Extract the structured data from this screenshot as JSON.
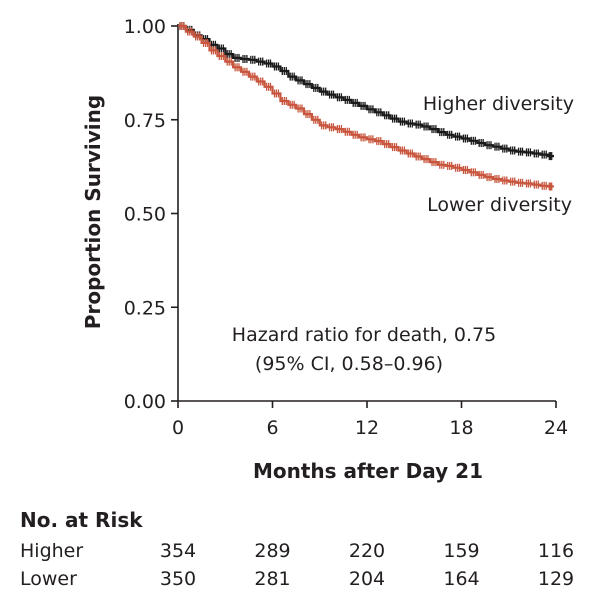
{
  "chart_data": {
    "type": "line",
    "subtype": "kaplan-meier",
    "title": "",
    "xlabel": "Months after Day 21",
    "ylabel": "Proportion Surviving",
    "xlim": [
      0,
      24
    ],
    "ylim": [
      0,
      1
    ],
    "x_ticks": [
      0,
      6,
      12,
      18,
      24
    ],
    "x_tick_labels": [
      "0",
      "6",
      "12",
      "18",
      "24"
    ],
    "y_ticks": [
      0,
      0.25,
      0.5,
      0.75,
      1.0
    ],
    "y_tick_labels": [
      "0.00",
      "0.25",
      "0.50",
      "0.75",
      "1.00"
    ],
    "grid": false,
    "legend": "none",
    "series": [
      {
        "name": "Higher diversity",
        "color": "#1a1a1a",
        "x": [
          0,
          0.5,
          1,
          1.5,
          2,
          2.5,
          3,
          3.5,
          4,
          4.5,
          5,
          5.5,
          6,
          6.5,
          7,
          7.5,
          8,
          8.5,
          9,
          9.5,
          10,
          10.5,
          11,
          11.5,
          12,
          12.5,
          13,
          13.5,
          14,
          14.5,
          15,
          15.5,
          16,
          16.5,
          17,
          17.5,
          18,
          18.5,
          19,
          19.5,
          20,
          20.5,
          21,
          21.5,
          22,
          22.5,
          23,
          23.5,
          23.8
        ],
        "y": [
          1.0,
          0.99,
          0.975,
          0.965,
          0.95,
          0.94,
          0.925,
          0.915,
          0.912,
          0.91,
          0.905,
          0.9,
          0.892,
          0.88,
          0.865,
          0.855,
          0.845,
          0.835,
          0.825,
          0.817,
          0.81,
          0.803,
          0.795,
          0.787,
          0.778,
          0.77,
          0.762,
          0.753,
          0.745,
          0.74,
          0.737,
          0.732,
          0.725,
          0.717,
          0.71,
          0.705,
          0.7,
          0.694,
          0.688,
          0.682,
          0.678,
          0.673,
          0.668,
          0.665,
          0.663,
          0.66,
          0.657,
          0.653,
          0.65
        ]
      },
      {
        "name": "Lower diversity",
        "color": "#c8553d",
        "x": [
          0,
          0.5,
          1,
          1.5,
          2,
          2.5,
          3,
          3.5,
          4,
          4.5,
          5,
          5.5,
          6,
          6.5,
          7,
          7.5,
          8,
          8.5,
          9,
          9.5,
          10,
          10.5,
          11,
          11.5,
          12,
          12.5,
          13,
          13.5,
          14,
          14.5,
          15,
          15.5,
          16,
          16.5,
          17,
          17.5,
          18,
          18.5,
          19,
          19.5,
          20,
          20.5,
          21,
          21.5,
          22,
          22.5,
          23,
          23.5,
          23.8
        ],
        "y": [
          1.0,
          0.985,
          0.972,
          0.955,
          0.935,
          0.92,
          0.905,
          0.89,
          0.878,
          0.865,
          0.852,
          0.838,
          0.82,
          0.8,
          0.79,
          0.78,
          0.765,
          0.75,
          0.735,
          0.73,
          0.725,
          0.718,
          0.71,
          0.703,
          0.698,
          0.693,
          0.685,
          0.677,
          0.668,
          0.66,
          0.652,
          0.645,
          0.637,
          0.63,
          0.627,
          0.622,
          0.616,
          0.61,
          0.603,
          0.597,
          0.592,
          0.588,
          0.585,
          0.582,
          0.58,
          0.577,
          0.574,
          0.572,
          0.57
        ]
      }
    ],
    "annotation": {
      "line1": "Hazard ratio for death, 0.75",
      "line2": "(95% CI, 0.58–0.96)"
    }
  },
  "risk_table": {
    "title": "No. at Risk",
    "rows": [
      {
        "label": "Higher",
        "values": [
          "354",
          "289",
          "220",
          "159",
          "116"
        ]
      },
      {
        "label": "Lower",
        "values": [
          "350",
          "281",
          "204",
          "164",
          "129"
        ]
      }
    ]
  }
}
